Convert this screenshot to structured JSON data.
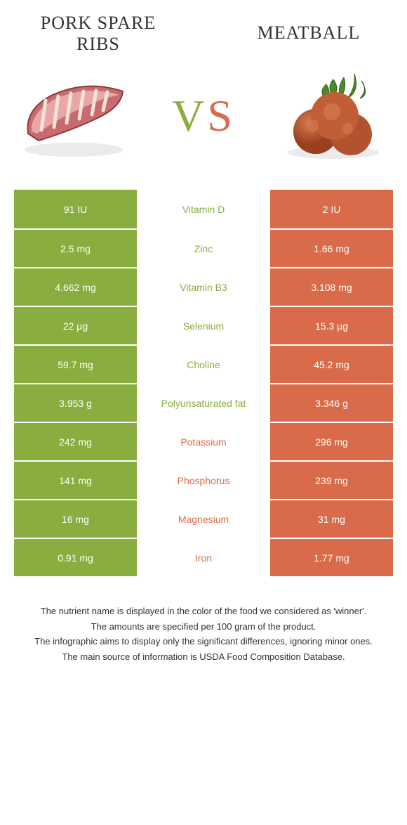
{
  "colors": {
    "left": "#8aad3f",
    "right": "#d96b4a",
    "text": "#333333",
    "bg": "#ffffff"
  },
  "header": {
    "left_title": "Pork spare ribs",
    "right_title": "Meatball",
    "vs": "VS"
  },
  "rows": [
    {
      "nutrient": "Vitamin D",
      "left": "91 IU",
      "right": "2 IU",
      "winner": "left"
    },
    {
      "nutrient": "Zinc",
      "left": "2.5 mg",
      "right": "1.66 mg",
      "winner": "left"
    },
    {
      "nutrient": "Vitamin B3",
      "left": "4.662 mg",
      "right": "3.108 mg",
      "winner": "left"
    },
    {
      "nutrient": "Selenium",
      "left": "22 µg",
      "right": "15.3 µg",
      "winner": "left"
    },
    {
      "nutrient": "Choline",
      "left": "59.7 mg",
      "right": "45.2 mg",
      "winner": "left"
    },
    {
      "nutrient": "Polyunsaturated fat",
      "left": "3.953 g",
      "right": "3.346 g",
      "winner": "left"
    },
    {
      "nutrient": "Potassium",
      "left": "242 mg",
      "right": "296 mg",
      "winner": "right"
    },
    {
      "nutrient": "Phosphorus",
      "left": "141 mg",
      "right": "239 mg",
      "winner": "right"
    },
    {
      "nutrient": "Magnesium",
      "left": "16 mg",
      "right": "31 mg",
      "winner": "right"
    },
    {
      "nutrient": "Iron",
      "left": "0.91 mg",
      "right": "1.77 mg",
      "winner": "right"
    }
  ],
  "footer": {
    "line1": "The nutrient name is displayed in the color of the food we considered as 'winner'.",
    "line2": "The amounts are specified per 100 gram of the product.",
    "line3": "The infographic aims to display only the significant differences, ignoring minor ones.",
    "line4": "The main source of information is USDA Food Composition Database."
  }
}
